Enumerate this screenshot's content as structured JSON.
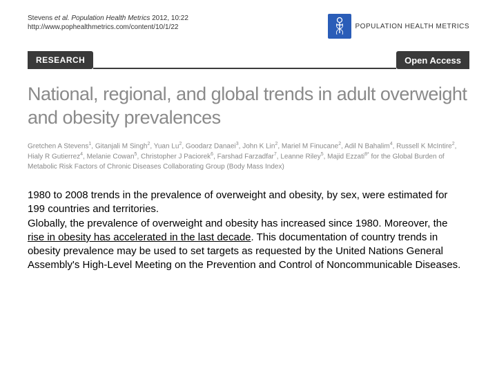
{
  "header": {
    "citation_line1_prefix": "Stevens ",
    "citation_line1_italic": "et al. Population Health Metrics",
    "citation_line1_suffix": " 2012, 10:22",
    "citation_line2": "http://www.pophealthmetrics.com/content/10/1/22",
    "journal_name": "POPULATION HEALTH METRICS"
  },
  "bar": {
    "research_label": "RESEARCH",
    "open_access_label": "Open Access"
  },
  "title": "National, regional, and global trends in adult overweight and obesity prevalences",
  "authors_html": "Gretchen A Stevens<span class='sup'>1</span>, Gitanjali M Singh<span class='sup'>2</span>, Yuan Lu<span class='sup'>2</span>, Goodarz Danaei<span class='sup'>3</span>, John K Lin<span class='sup'>2</span>, Mariel M Finucane<span class='sup'>2</span>, Adil N Bahalim<span class='sup'>4</span>, Russell K McIntire<span class='sup'>2</span>, Hialy R Gutierrez<span class='sup'>4</span>, Melanie Cowan<span class='sup'>5</span>, Christopher J Paciorek<span class='sup'>6</span>, Farshad Farzadfar<span class='sup'>7</span>, Leanne Riley<span class='sup'>5</span>, Majid Ezzati<span class='sup'>8*</span> for the Global Burden of Metabolic Risk Factors of Chronic Diseases Collaborating Group (Body Mass Index)",
  "summary": {
    "line1": "1980 to 2008 trends in the prevalence of overweight and obesity, by sex, were estimated for 199 countries and territories.",
    "line2a": "Globally, the prevalence of overweight and obesity has increased since 1980. Moreover, the ",
    "line2b_underlined": "rise in obesity has accelerated in the last decade",
    "line2c": ". This documentation of country trends in obesity prevalence may be used to set targets as requested by the United Nations General Assembly's High-Level Meeting on the Prevention and Control of Noncommunicable Diseases."
  },
  "colors": {
    "badge_bg": "#2a5db8",
    "bar_bg": "#3a3a3a",
    "title_color": "#8a8a8a",
    "author_color": "#888888"
  }
}
